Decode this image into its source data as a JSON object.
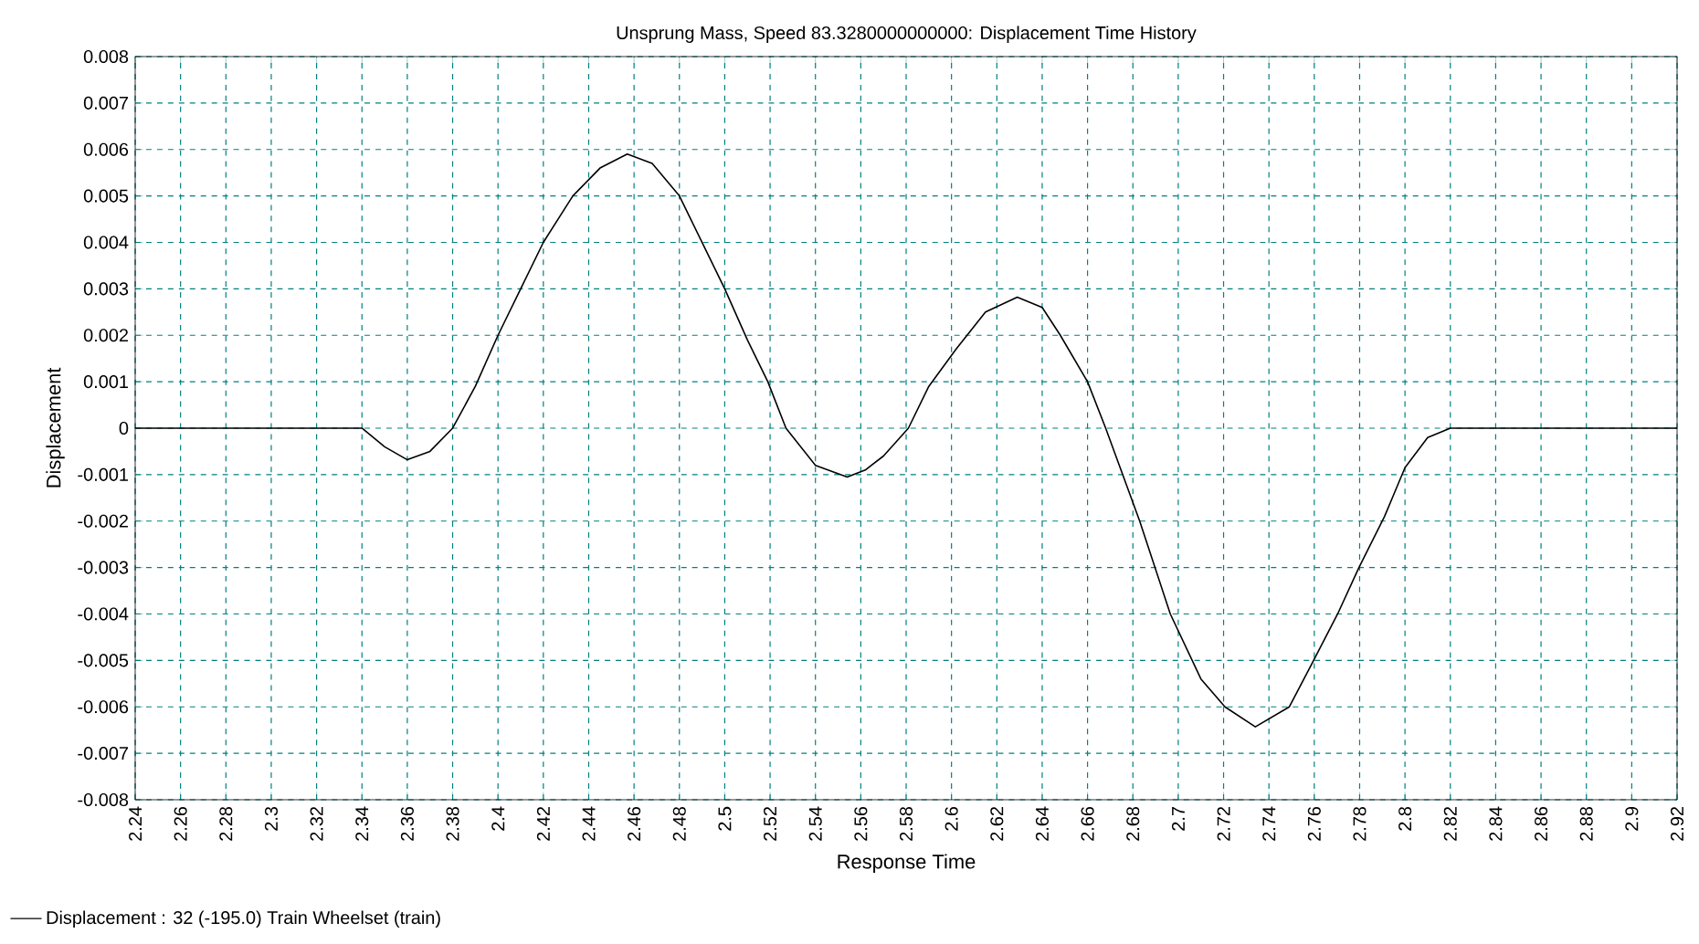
{
  "chart_data": {
    "type": "line",
    "title": "Unsprung Mass, Speed 83.3280000000000: Displacement Time History",
    "xlabel": "Response Time",
    "ylabel": "Displacement",
    "xlim": [
      2.24,
      2.92
    ],
    "ylim": [
      -0.008,
      0.008
    ],
    "xticks": [
      2.24,
      2.26,
      2.28,
      2.3,
      2.32,
      2.34,
      2.36,
      2.38,
      2.4,
      2.42,
      2.44,
      2.46,
      2.48,
      2.5,
      2.52,
      2.54,
      2.56,
      2.58,
      2.6,
      2.62,
      2.64,
      2.66,
      2.68,
      2.7,
      2.72,
      2.74,
      2.76,
      2.78,
      2.8,
      2.82,
      2.84,
      2.86,
      2.88,
      2.9,
      2.92
    ],
    "yticks": [
      -0.008,
      -0.007,
      -0.006,
      -0.005,
      -0.004,
      -0.003,
      -0.002,
      -0.001,
      0,
      0.001,
      0.002,
      0.003,
      0.004,
      0.005,
      0.006,
      0.007,
      0.008
    ],
    "grid": true,
    "legend": "bottom left",
    "marker": "none",
    "line_style": "solid",
    "series": [
      {
        "name": "Displacement : 32 (-195.0) Train Wheelset (train)",
        "color": "#000000",
        "x": [
          2.24,
          2.34,
          2.35,
          2.36,
          2.37,
          2.38,
          2.39,
          2.4,
          2.41,
          2.42,
          2.433,
          2.445,
          2.457,
          2.468,
          2.48,
          2.49,
          2.5,
          2.51,
          2.519,
          2.527,
          2.54,
          2.554,
          2.562,
          2.57,
          2.581,
          2.59,
          2.602,
          2.615,
          2.629,
          2.64,
          2.648,
          2.66,
          2.668,
          2.683,
          2.6965,
          2.71,
          2.7206,
          2.734,
          2.749,
          2.7597,
          2.7703,
          2.7797,
          2.791,
          2.8,
          2.81,
          2.82,
          2.92
        ],
        "values": [
          0,
          0,
          -0.0004,
          -0.00068,
          -0.0005,
          0,
          0.0009,
          0.002,
          0.003,
          0.004,
          0.005,
          0.0056,
          0.0059,
          0.0057,
          0.005,
          0.004,
          0.003,
          0.0019,
          0.001,
          0.0,
          -0.0008,
          -0.00105,
          -0.0009,
          -0.0006,
          0,
          0.0009,
          0.0017,
          0.0025,
          0.00282,
          0.0026,
          0.002,
          0.001,
          0,
          -0.002,
          -0.004,
          -0.0054,
          -0.006,
          -0.00643,
          -0.006,
          -0.005,
          -0.004,
          -0.003,
          -0.0019,
          -0.00085,
          -0.0002,
          0,
          0
        ]
      }
    ]
  }
}
